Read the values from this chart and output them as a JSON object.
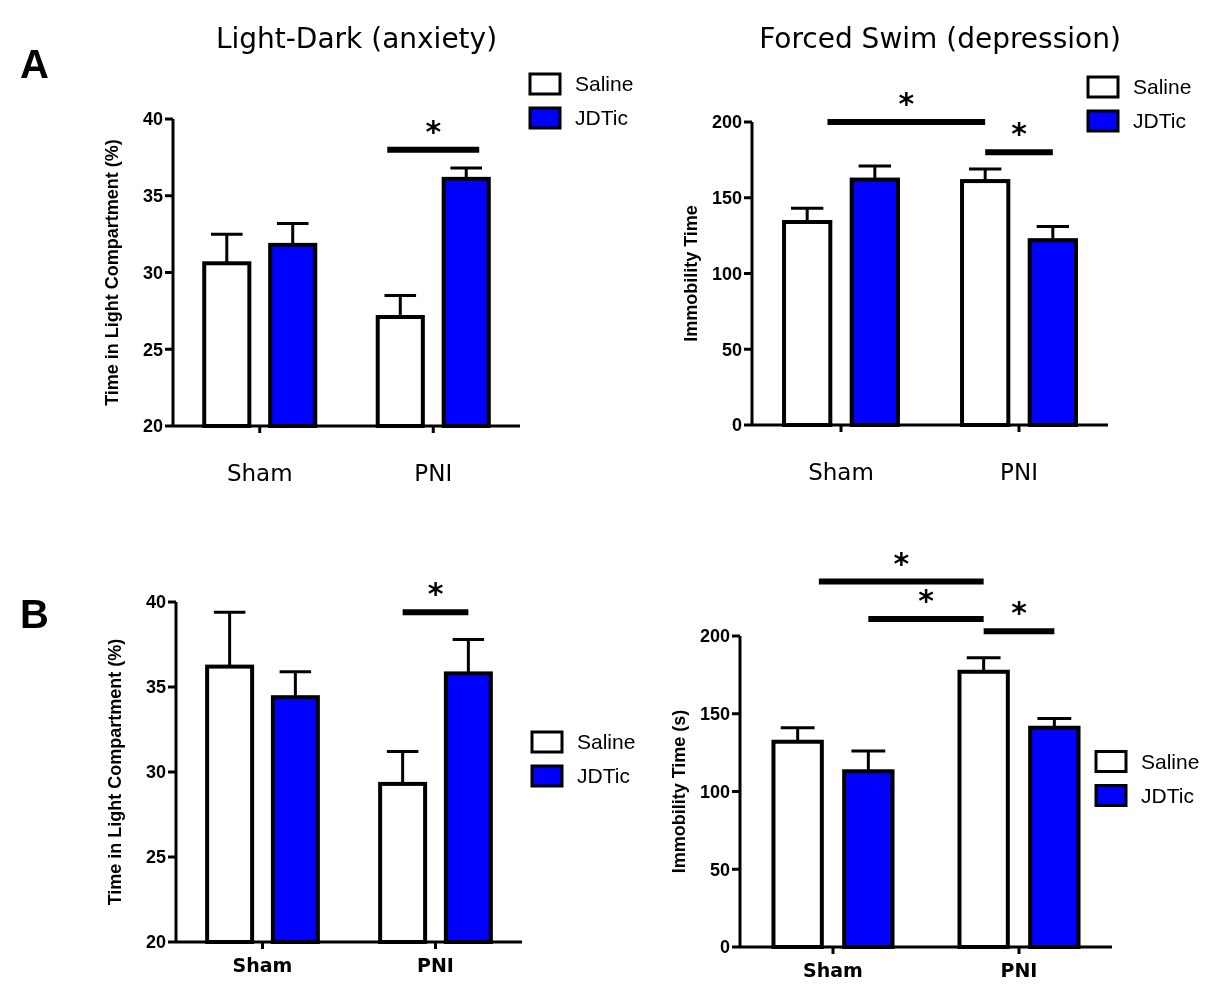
{
  "chart_data": [
    {
      "type": "bar",
      "title": "Light-Dark (anxiety)",
      "ylabel": "Time in Light Compartment (%)",
      "categories": [
        "Sham",
        "PNI"
      ],
      "ylim": [
        20,
        40
      ],
      "yticks": [
        20,
        25,
        30,
        35,
        40
      ],
      "legend": "top right",
      "annotations": [
        "A",
        "*"
      ],
      "series": [
        {
          "name": "Saline",
          "color": "#ffffff",
          "values": [
            30.6,
            27.1
          ],
          "errors": [
            [
              30.6,
              32.5
            ],
            [
              27.1,
              28.5
            ]
          ]
        },
        {
          "name": "JDTic",
          "color": "#0000ff",
          "values": [
            31.8,
            36.1
          ],
          "errors": [
            [
              31.8,
              33.2
            ],
            [
              36.1,
              36.8
            ]
          ]
        }
      ]
    },
    {
      "type": "bar",
      "title": "Forced Swim (depression)",
      "ylabel": "Immobility Time",
      "categories": [
        "Sham",
        "PNI"
      ],
      "ylim": [
        0,
        200
      ],
      "yticks": [
        0,
        50,
        100,
        150,
        200
      ],
      "legend": "top right",
      "annotations": [
        "*",
        "*"
      ],
      "series": [
        {
          "name": "Saline",
          "color": "#ffffff",
          "values": [
            134,
            161
          ],
          "errors": [
            [
              134,
              143
            ],
            [
              161,
              169
            ]
          ]
        },
        {
          "name": "JDTic",
          "color": "#0000ff",
          "values": [
            162,
            122
          ],
          "errors": [
            [
              162,
              171
            ],
            [
              122,
              131
            ]
          ]
        }
      ]
    },
    {
      "type": "bar",
      "ylabel": "Time in Light Compartment (%)",
      "categories": [
        "Sham",
        "PNI"
      ],
      "ylim": [
        20,
        40
      ],
      "yticks": [
        20,
        25,
        30,
        35,
        40
      ],
      "legend": "right",
      "annotations": [
        "B",
        "*"
      ],
      "series": [
        {
          "name": "Saline",
          "color": "#ffffff",
          "values": [
            36.2,
            29.3
          ],
          "errors": [
            [
              36.2,
              39.4
            ],
            [
              29.3,
              31.2
            ]
          ]
        },
        {
          "name": "JDTic",
          "color": "#0000ff",
          "values": [
            34.4,
            35.8
          ],
          "errors": [
            [
              34.4,
              35.9
            ],
            [
              35.8,
              37.8
            ]
          ]
        }
      ]
    },
    {
      "type": "bar",
      "ylabel": "Immobility Time (s)",
      "categories": [
        "Sham",
        "PNI"
      ],
      "ylim": [
        0,
        200
      ],
      "yticks": [
        0,
        50,
        100,
        150,
        200
      ],
      "legend": "right",
      "annotations": [
        "*",
        "*",
        "*"
      ],
      "series": [
        {
          "name": "Saline",
          "color": "#ffffff",
          "values": [
            132,
            177
          ],
          "errors": [
            [
              132,
              141
            ],
            [
              177,
              186
            ]
          ]
        },
        {
          "name": "JDTic",
          "color": "#0000ff",
          "values": [
            113,
            141
          ],
          "errors": [
            [
              113,
              126
            ],
            [
              141,
              147
            ]
          ]
        }
      ]
    }
  ]
}
